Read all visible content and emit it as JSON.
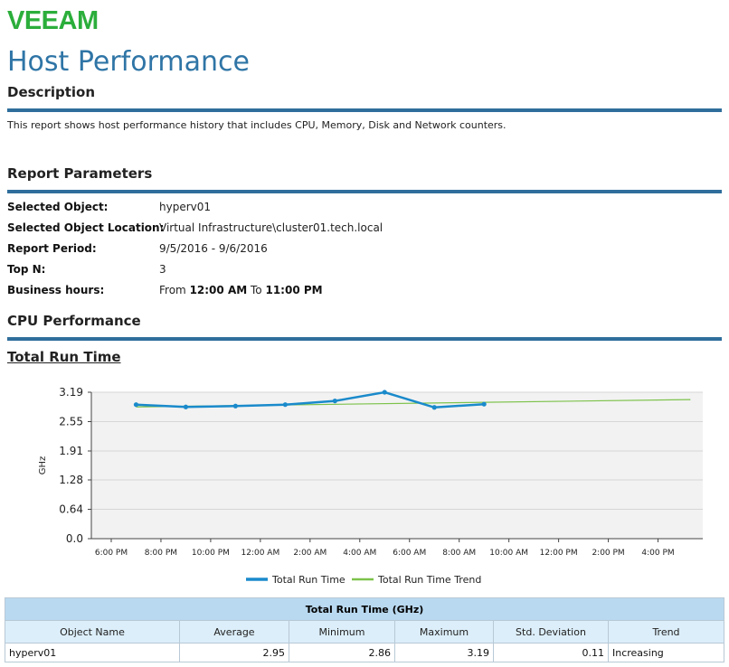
{
  "brand": {
    "logo_text": "VEEAM",
    "logo_color": "#2bae3b",
    "accent_color": "#2f75a6",
    "rule_color": "#2f6e9c"
  },
  "header": {
    "title": "Host Performance"
  },
  "description": {
    "heading": "Description",
    "text": "This report shows host performance history that includes CPU, Memory, Disk and Network counters."
  },
  "parameters": {
    "heading": "Report Parameters",
    "items": [
      {
        "label": "Selected Object:",
        "value": "hyperv01"
      },
      {
        "label": "Selected Object Location:",
        "value": "Virtual Infrastructure\\cluster01.tech.local"
      },
      {
        "label": "Report Period:",
        "value": "9/5/2016 - 9/6/2016"
      },
      {
        "label": "Top N:",
        "value": "3"
      }
    ],
    "business_hours": {
      "label": "Business hours:",
      "from_text": "From",
      "start": "12:00 AM",
      "to_text": "To",
      "end": "11:00 PM"
    }
  },
  "cpu": {
    "heading": "CPU Performance",
    "subheading": "Total Run Time"
  },
  "chart_data": {
    "type": "line",
    "ylabel": "GHz",
    "yticks": [
      "0.0",
      "0.64",
      "1.28",
      "1.91",
      "2.55",
      "3.19"
    ],
    "ylim": [
      0,
      3.19
    ],
    "xticks": [
      "6:00 PM",
      "8:00 PM",
      "10:00 PM",
      "12:00 AM",
      "2:00 AM",
      "4:00 AM",
      "6:00 AM",
      "8:00 AM",
      "10:00 AM",
      "12:00 PM",
      "2:00 PM",
      "4:00 PM"
    ],
    "x_range_hours": [
      -0.8,
      23.8
    ],
    "grid": true,
    "legend_position": "bottom",
    "series": [
      {
        "name": "Total Run Time",
        "color": "#1a8acb",
        "x_hours": [
          1,
          3,
          5,
          7,
          9,
          11,
          13,
          15
        ],
        "values": [
          2.92,
          2.87,
          2.89,
          2.92,
          3.0,
          3.19,
          2.86,
          2.93
        ]
      },
      {
        "name": "Total Run Time Trend",
        "color": "#7dc24b",
        "x_hours": [
          1,
          23.3
        ],
        "values": [
          2.87,
          3.03
        ]
      }
    ]
  },
  "table": {
    "title": "Total Run Time (GHz)",
    "columns": [
      "Object Name",
      "Average",
      "Minimum",
      "Maximum",
      "Std. Deviation",
      "Trend"
    ],
    "rows": [
      [
        "hyperv01",
        "2.95",
        "2.86",
        "3.19",
        "0.11",
        "Increasing"
      ]
    ]
  }
}
